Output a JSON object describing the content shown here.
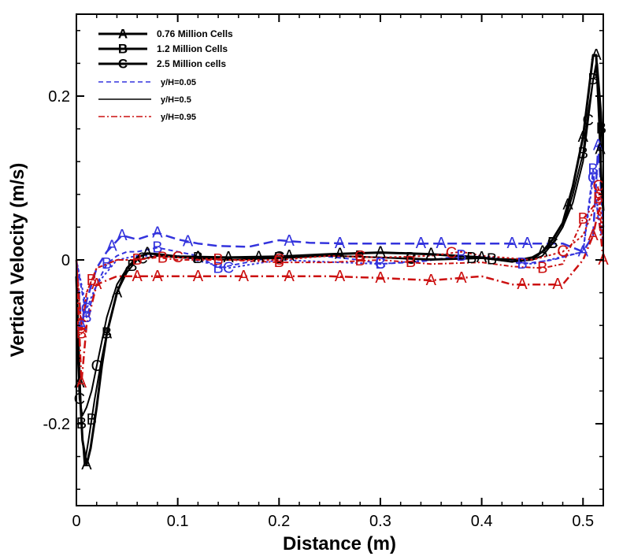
{
  "chart_data": {
    "type": "line",
    "title": "",
    "xlabel": "Distance (m)",
    "ylabel": "Vertical Velocity (m/s)",
    "xlim": [
      0,
      0.52
    ],
    "ylim": [
      -0.3,
      0.3
    ],
    "x_ticks": [
      0,
      0.1,
      0.2,
      0.3,
      0.4,
      0.5
    ],
    "x_tick_labels": [
      "0",
      "0.1",
      "0.2",
      "0.3",
      "0.4",
      "0.5"
    ],
    "y_ticks": [
      -0.2,
      0,
      0.2
    ],
    "y_tick_labels": [
      "-0.2",
      "0",
      "0.2"
    ],
    "grid": false,
    "legend_position": "top-left",
    "legend_mesh": [
      {
        "marker": "A",
        "label": "0.76 Million Cells"
      },
      {
        "marker": "B",
        "label": "1.2 Million Cells"
      },
      {
        "marker": "C",
        "label": "2.5 Million cells"
      }
    ],
    "legend_height": [
      {
        "label": "y/H=0.05",
        "color": "#3333dd",
        "dash": "6,4"
      },
      {
        "label": "y/H=0.5",
        "color": "#000000",
        "dash": ""
      },
      {
        "label": "y/H=0.95",
        "color": "#cc1111",
        "dash": "8,3,2,3"
      }
    ],
    "series": [
      {
        "name": "y/H=0.05 (0.76 Million Cells)",
        "color": "#3333dd",
        "dash": "12,6",
        "width": 2.5,
        "marker": "A",
        "x": [
          0,
          0.005,
          0.01,
          0.02,
          0.03,
          0.045,
          0.06,
          0.08,
          0.1,
          0.12,
          0.14,
          0.17,
          0.2,
          0.23,
          0.27,
          0.3,
          0.34,
          0.38,
          0.42,
          0.45,
          0.48,
          0.5,
          0.51,
          0.515,
          0.52
        ],
        "y": [
          0,
          -0.08,
          -0.05,
          -0.01,
          0.01,
          0.03,
          0.025,
          0.033,
          0.025,
          0.02,
          0.017,
          0.016,
          0.024,
          0.021,
          0.02,
          0.02,
          0.02,
          0.02,
          0.02,
          0.02,
          0.02,
          0.01,
          0.03,
          0.14,
          0.04
        ],
        "marker_x": [
          0.005,
          0.035,
          0.045,
          0.08,
          0.11,
          0.21,
          0.26,
          0.34,
          0.36,
          0.43,
          0.445,
          0.5,
          0.515
        ]
      },
      {
        "name": "y/H=0.05 (1.2 Million Cells)",
        "color": "#3333dd",
        "dash": "6,4",
        "width": 2,
        "marker": "B",
        "x": [
          0,
          0.01,
          0.02,
          0.03,
          0.04,
          0.05,
          0.06,
          0.08,
          0.1,
          0.12,
          0.14,
          0.16,
          0.2,
          0.24,
          0.28,
          0.3,
          0.34,
          0.38,
          0.42,
          0.44,
          0.47,
          0.5,
          0.51,
          0.515,
          0.52
        ],
        "y": [
          0,
          -0.07,
          -0.03,
          -0.005,
          0.005,
          0.01,
          0.01,
          0.015,
          0.01,
          0.005,
          -0.01,
          -0.005,
          0.005,
          0.005,
          0.0,
          -0.005,
          -0.002,
          0.005,
          0.0,
          -0.005,
          0.0,
          0.01,
          0.11,
          0.05,
          0.02
        ],
        "marker_x": [
          0.01,
          0.03,
          0.08,
          0.14,
          0.3,
          0.38,
          0.44,
          0.51
        ]
      },
      {
        "name": "y/H=0.05 (2.5 Million cells)",
        "color": "#3333dd",
        "dash": "3,3",
        "width": 2,
        "marker": "C",
        "x": [
          0,
          0.01,
          0.02,
          0.04,
          0.06,
          0.1,
          0.15,
          0.2,
          0.3,
          0.4,
          0.45,
          0.5,
          0.51,
          0.52
        ],
        "y": [
          0,
          -0.06,
          -0.03,
          0.0,
          0.005,
          0.005,
          -0.01,
          0.0,
          -0.005,
          0.005,
          -0.005,
          0.01,
          0.1,
          0.02
        ],
        "marker_x": [
          0.01,
          0.15,
          0.3,
          0.51
        ]
      },
      {
        "name": "y/H=0.5 (0.76 Million Cells)",
        "color": "#000000",
        "dash": "",
        "width": 3,
        "marker": "A",
        "x": [
          0,
          0.003,
          0.006,
          0.01,
          0.014,
          0.02,
          0.025,
          0.03,
          0.04,
          0.05,
          0.06,
          0.07,
          0.08,
          0.1,
          0.15,
          0.2,
          0.25,
          0.3,
          0.35,
          0.4,
          0.43,
          0.45,
          0.46,
          0.47,
          0.48,
          0.49,
          0.5,
          0.505,
          0.51,
          0.513,
          0.516,
          0.518,
          0.52
        ],
        "y": [
          -0.02,
          -0.15,
          -0.22,
          -0.25,
          -0.23,
          -0.18,
          -0.13,
          -0.09,
          -0.04,
          -0.01,
          0.003,
          0.008,
          0.007,
          0.004,
          0.003,
          0.004,
          0.007,
          0.009,
          0.007,
          0.003,
          -0.002,
          0.003,
          0.01,
          0.025,
          0.045,
          0.09,
          0.15,
          0.2,
          0.25,
          0.25,
          0.17,
          0.1,
          0.06
        ],
        "marker_x": [
          0.003,
          0.01,
          0.03,
          0.04,
          0.07,
          0.12,
          0.15,
          0.18,
          0.21,
          0.26,
          0.3,
          0.35,
          0.4,
          0.46,
          0.485,
          0.5,
          0.513,
          0.517
        ]
      },
      {
        "name": "y/H=0.5 (1.2 Million Cells)",
        "color": "#000000",
        "dash": "",
        "width": 2,
        "marker": "B",
        "x": [
          0,
          0.005,
          0.008,
          0.012,
          0.018,
          0.025,
          0.03,
          0.04,
          0.05,
          0.06,
          0.08,
          0.1,
          0.15,
          0.2,
          0.25,
          0.3,
          0.35,
          0.4,
          0.43,
          0.45,
          0.46,
          0.47,
          0.48,
          0.49,
          0.5,
          0.505,
          0.51,
          0.513,
          0.516,
          0.52
        ],
        "y": [
          -0.01,
          -0.2,
          -0.25,
          -0.22,
          -0.17,
          -0.12,
          -0.09,
          -0.04,
          -0.015,
          0.0,
          0.005,
          0.003,
          0.0,
          0.002,
          0.005,
          0.003,
          0.001,
          0.002,
          -0.002,
          0.0,
          0.005,
          0.02,
          0.04,
          0.08,
          0.13,
          0.18,
          0.22,
          0.24,
          0.2,
          0.12
        ],
        "marker_x": [
          0.005,
          0.015,
          0.03,
          0.055,
          0.12,
          0.2,
          0.28,
          0.33,
          0.39,
          0.41,
          0.47,
          0.5,
          0.51,
          0.518
        ]
      },
      {
        "name": "y/H=0.5 (2.5 Million cells)",
        "color": "#000000",
        "dash": "",
        "width": 2,
        "marker": "C",
        "x": [
          0,
          0.003,
          0.006,
          0.01,
          0.015,
          0.02,
          0.03,
          0.04,
          0.05,
          0.06,
          0.08,
          0.1,
          0.15,
          0.2,
          0.25,
          0.3,
          0.35,
          0.4,
          0.45,
          0.47,
          0.48,
          0.49,
          0.5,
          0.505,
          0.51,
          0.514,
          0.518,
          0.52
        ],
        "y": [
          -0.08,
          -0.17,
          -0.19,
          -0.18,
          -0.16,
          -0.13,
          -0.07,
          -0.03,
          -0.01,
          0.0,
          0.005,
          0.003,
          0.0,
          0.003,
          0.005,
          0.003,
          0.0,
          0.002,
          0.0,
          0.02,
          0.04,
          0.07,
          0.12,
          0.17,
          0.22,
          0.24,
          0.18,
          0.12
        ],
        "marker_x": [
          0.003,
          0.02,
          0.065,
          0.2,
          0.33,
          0.47,
          0.505
        ]
      },
      {
        "name": "y/H=0.95 (0.76 Million Cells)",
        "color": "#cc1111",
        "dash": "10,4,2,4",
        "width": 2.5,
        "marker": "A",
        "x": [
          0,
          0.005,
          0.01,
          0.02,
          0.04,
          0.06,
          0.08,
          0.1,
          0.15,
          0.2,
          0.25,
          0.3,
          0.35,
          0.4,
          0.43,
          0.45,
          0.48,
          0.5,
          0.51,
          0.515,
          0.52
        ],
        "y": [
          0.0,
          -0.15,
          -0.08,
          -0.03,
          -0.02,
          -0.02,
          -0.02,
          -0.02,
          -0.02,
          -0.02,
          -0.02,
          -0.022,
          -0.025,
          -0.02,
          -0.03,
          -0.03,
          -0.03,
          0.0,
          0.03,
          0.06,
          0.0
        ],
        "marker_x": [
          0.005,
          0.02,
          0.06,
          0.08,
          0.12,
          0.165,
          0.21,
          0.26,
          0.3,
          0.35,
          0.38,
          0.44,
          0.475,
          0.51,
          0.52
        ]
      },
      {
        "name": "y/H=0.95 (1.2 Million Cells)",
        "color": "#cc1111",
        "dash": "6,3,2,3",
        "width": 2,
        "marker": "B",
        "x": [
          0,
          0.005,
          0.01,
          0.02,
          0.04,
          0.06,
          0.08,
          0.1,
          0.15,
          0.2,
          0.25,
          0.3,
          0.35,
          0.4,
          0.43,
          0.46,
          0.48,
          0.5,
          0.51,
          0.515,
          0.52
        ],
        "y": [
          0.0,
          -0.09,
          -0.04,
          -0.01,
          0.0,
          0.0,
          0.003,
          0.0,
          0.0,
          -0.003,
          -0.003,
          0.0,
          -0.005,
          -0.003,
          -0.008,
          -0.01,
          -0.005,
          0.05,
          0.065,
          0.075,
          0.02
        ],
        "marker_x": [
          0.005,
          0.015,
          0.06,
          0.085,
          0.14,
          0.2,
          0.28,
          0.33,
          0.46,
          0.5,
          0.515
        ]
      },
      {
        "name": "y/H=0.95 (2.5 Million cells)",
        "color": "#cc1111",
        "dash": "3,3",
        "width": 2,
        "marker": "C",
        "x": [
          0,
          0.005,
          0.01,
          0.02,
          0.04,
          0.06,
          0.08,
          0.1,
          0.15,
          0.2,
          0.25,
          0.3,
          0.35,
          0.38,
          0.4,
          0.45,
          0.48,
          0.5,
          0.51,
          0.515,
          0.52
        ],
        "y": [
          0.0,
          -0.08,
          -0.04,
          -0.01,
          0.0,
          0.0,
          0.005,
          0.003,
          0.0,
          0.0,
          0.005,
          0.003,
          0.005,
          0.01,
          0.005,
          0.0,
          0.01,
          0.03,
          0.06,
          0.09,
          0.03
        ],
        "marker_x": [
          0.005,
          0.1,
          0.2,
          0.28,
          0.37,
          0.48,
          0.515
        ]
      }
    ]
  }
}
